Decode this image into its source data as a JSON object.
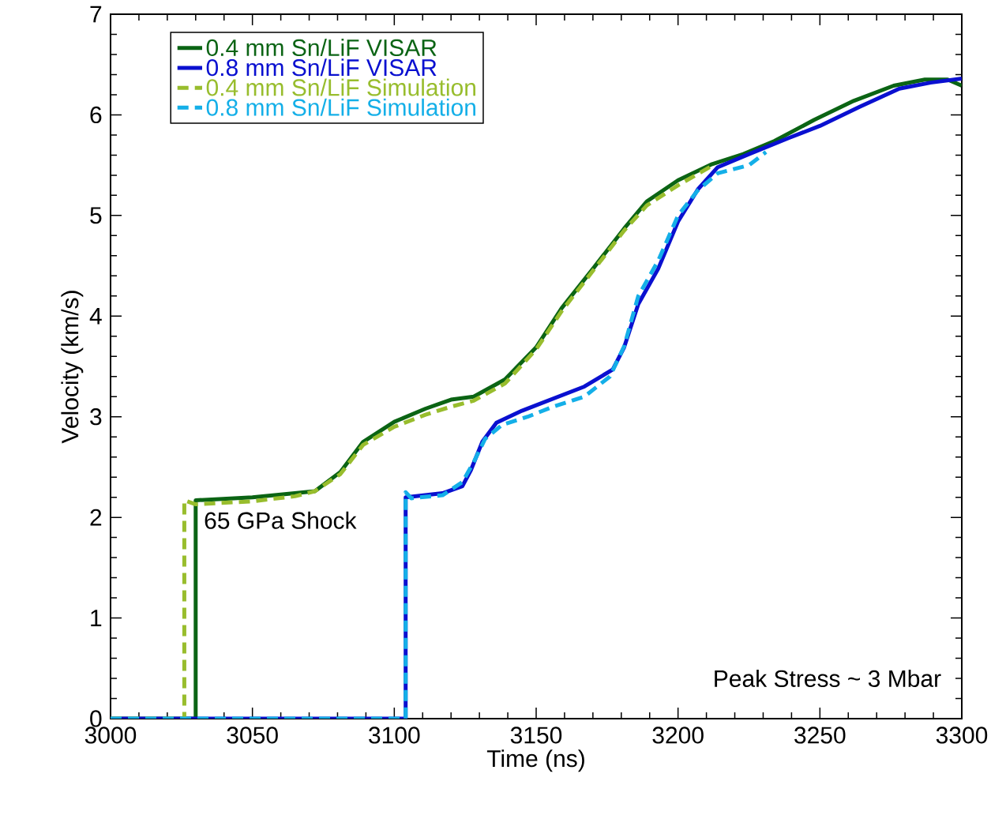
{
  "chart_data": {
    "type": "line",
    "xlabel": "Time (ns)",
    "ylabel": "Velocity (km/s)",
    "xlim": [
      3000,
      3300
    ],
    "ylim": [
      0,
      7
    ],
    "xticks": [
      3000,
      3050,
      3100,
      3150,
      3200,
      3250,
      3300
    ],
    "yticks": [
      0,
      1,
      2,
      3,
      4,
      5,
      6,
      7
    ],
    "grid": false,
    "legend": "top left",
    "marker": "none",
    "annotations": [
      {
        "text": "65 GPa Shock",
        "x": 3030,
        "y": 2.17
      },
      "Peak Stress ~ 3 Mbar"
    ],
    "series": [
      {
        "name": "0.4 mm Sn/LiF VISAR",
        "color": "#0b6414",
        "line_style": "solid",
        "x": [
          3000,
          3030,
          3030,
          3050,
          3072,
          3081,
          3089,
          3100,
          3111,
          3120,
          3128,
          3139,
          3150,
          3159,
          3170,
          3181,
          3189,
          3200,
          3212,
          3223,
          3234,
          3248,
          3262,
          3276,
          3287,
          3295,
          3300
        ],
        "values": [
          0,
          0,
          2.17,
          2.2,
          2.26,
          2.45,
          2.75,
          2.95,
          3.08,
          3.17,
          3.2,
          3.37,
          3.69,
          4.08,
          4.47,
          4.87,
          5.14,
          5.35,
          5.51,
          5.61,
          5.74,
          5.95,
          6.14,
          6.29,
          6.35,
          6.35,
          6.29
        ]
      },
      {
        "name": "0.8 mm Sn/LiF VISAR",
        "color": "#0a10d0",
        "line_style": "solid",
        "x": [
          3000,
          3104,
          3104,
          3117,
          3124,
          3127,
          3131,
          3136,
          3145,
          3156,
          3167,
          3177,
          3181,
          3186,
          3193,
          3200,
          3207,
          3214,
          3225,
          3239,
          3250,
          3264,
          3278,
          3289,
          3300
        ],
        "values": [
          0,
          0,
          2.2,
          2.24,
          2.31,
          2.47,
          2.75,
          2.94,
          3.06,
          3.18,
          3.3,
          3.47,
          3.69,
          4.12,
          4.47,
          4.94,
          5.26,
          5.48,
          5.61,
          5.77,
          5.89,
          6.08,
          6.26,
          6.32,
          6.36
        ]
      },
      {
        "name": "0.4 mm Sn/LiF Simulation",
        "color": "#98bd2d",
        "line_style": "dashed",
        "x": [
          3000,
          3026,
          3026,
          3030,
          3050,
          3065,
          3072,
          3081,
          3089,
          3100,
          3111,
          3120,
          3128,
          3139,
          3150,
          3159,
          3170,
          3181,
          3189,
          3200,
          3213
        ],
        "values": [
          0,
          0,
          2.17,
          2.13,
          2.16,
          2.21,
          2.26,
          2.43,
          2.72,
          2.9,
          3.02,
          3.1,
          3.16,
          3.33,
          3.67,
          4.05,
          4.45,
          4.85,
          5.1,
          5.3,
          5.51
        ]
      },
      {
        "name": "0.8 mm Sn/LiF Simulation",
        "color": "#14afe8",
        "line_style": "dashed",
        "x": [
          3000,
          3104,
          3104,
          3106,
          3117,
          3124,
          3128,
          3132,
          3138,
          3147,
          3156,
          3167,
          3176,
          3181,
          3186,
          3193,
          3200,
          3207,
          3214,
          3225,
          3231
        ],
        "values": [
          0,
          0,
          2.25,
          2.19,
          2.22,
          2.35,
          2.55,
          2.78,
          2.92,
          3.0,
          3.1,
          3.2,
          3.4,
          3.7,
          4.2,
          4.55,
          5.0,
          5.25,
          5.42,
          5.5,
          5.63
        ]
      }
    ]
  }
}
